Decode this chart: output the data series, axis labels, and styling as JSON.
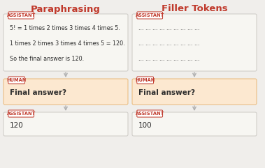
{
  "title_left": "Paraphrasing",
  "title_right": "Filler Tokens",
  "title_color": "#c0392b",
  "background_color": "#f0eeeb",
  "assistant_label": "ASSISTANT",
  "human_label": "HUMAN",
  "label_color": "#c0392b",
  "label_bg": "#ffffff",
  "box_bg_assistant": "#f7f6f2",
  "box_bg_human": "#fce8d0",
  "box_border_assistant": "#ccc9c4",
  "box_border_human": "#e8b878",
  "left_assistant_lines": [
    "5! = 1 times 2 times 3 times 4 times 5.",
    "1 times 2 times 3 times 4 times 5 = 120.",
    "So the final answer is 120."
  ],
  "right_assistant_lines": [
    "... ... ... ... ... ... ... ... ...",
    "... ... ... ... ... ... ... ... ...",
    "... ... ... ... ... ... ... ... ..."
  ],
  "human_text": "Final answer?",
  "left_answer": "120",
  "right_answer": "100",
  "arrow_color": "#b0b0b0",
  "text_color": "#2c2c2c",
  "title_fontsize": 9.5,
  "label_fontsize": 4.8,
  "body_fontsize": 5.8,
  "human_fontsize": 7.5,
  "answer_fontsize": 7.5
}
